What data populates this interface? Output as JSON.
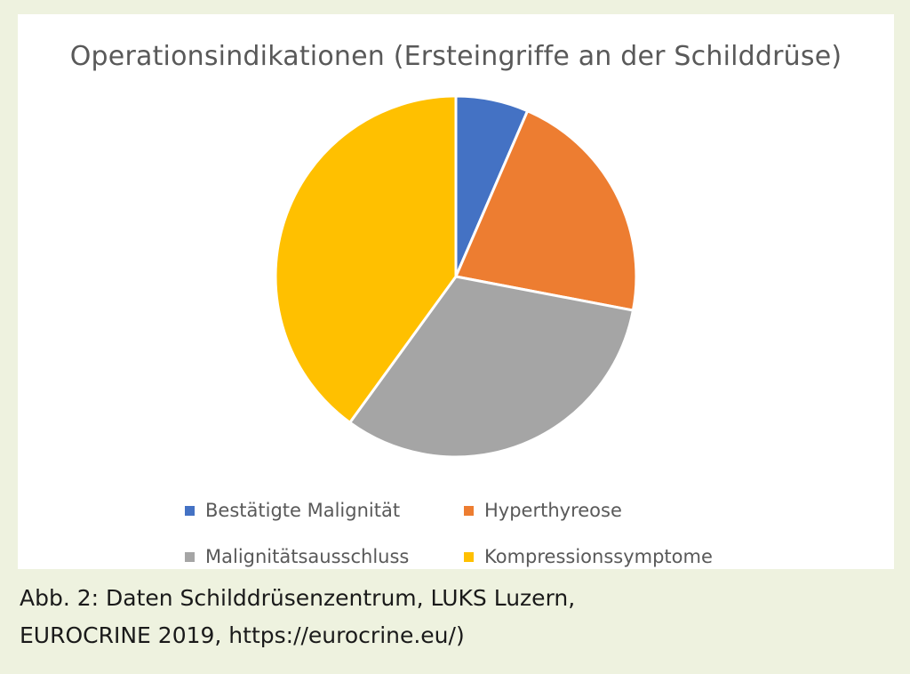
{
  "chart_data": {
    "type": "pie",
    "title": "Operationsindikationen (Ersteingriffe an der Schilddrüse)",
    "categories": [
      "Bestätigte Malignität",
      "Hyperthyreose",
      "Malignitätsausschluss",
      "Kompressionssymptome"
    ],
    "values": [
      6.5,
      21.5,
      32,
      40
    ],
    "unit": "%",
    "colors": [
      "#4472c4",
      "#ed7d31",
      "#a5a5a5",
      "#ffc000"
    ],
    "start_angle_deg": 0,
    "direction": "clockwise",
    "legend_position": "bottom"
  },
  "caption": {
    "line1": "Abb. 2:  Daten Schilddrüsenzentrum, LUKS Luzern,",
    "line2": "EUROCRINE 2019, https://eurocrine.eu/)"
  }
}
